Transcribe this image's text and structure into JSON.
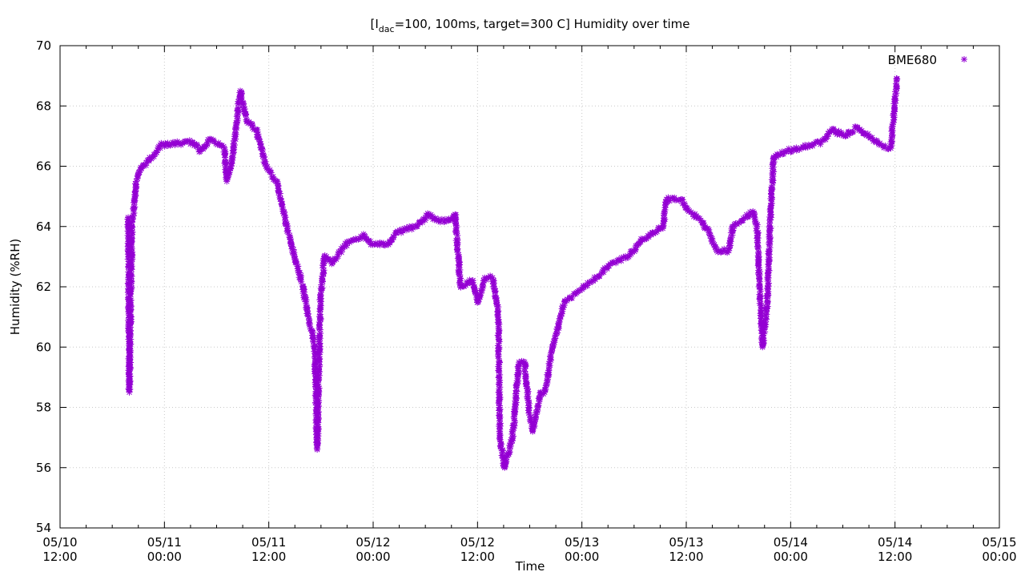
{
  "chart_data": {
    "type": "scatter",
    "title": {
      "prefix": "[I",
      "subscript": "dac",
      "suffix": "=100, 100ms, target=300 C] Humidity over time"
    },
    "xlabel": "Time",
    "ylabel": "Humidity (%RH)",
    "xlim": [
      "05/10 12:00",
      "05/15 00:00"
    ],
    "ylim": [
      54,
      70
    ],
    "x_ticks": [
      {
        "date": "05/10",
        "time": "12:00"
      },
      {
        "date": "05/11",
        "time": "00:00"
      },
      {
        "date": "05/11",
        "time": "12:00"
      },
      {
        "date": "05/12",
        "time": "00:00"
      },
      {
        "date": "05/12",
        "time": "12:00"
      },
      {
        "date": "05/13",
        "time": "00:00"
      },
      {
        "date": "05/13",
        "time": "12:00"
      },
      {
        "date": "05/14",
        "time": "00:00"
      },
      {
        "date": "05/14",
        "time": "12:00"
      },
      {
        "date": "05/15",
        "time": "00:00"
      }
    ],
    "y_ticks": [
      "54",
      "56",
      "58",
      "60",
      "62",
      "64",
      "66",
      "68",
      "70"
    ],
    "grid": true,
    "legend_position": "top-right",
    "series": [
      {
        "name": "BME680",
        "color": "#9400D3",
        "marker": "asterisk",
        "points": [
          [
            "05/10 19:50",
            64.3
          ],
          [
            "05/10 19:53",
            63.0
          ],
          [
            "05/10 19:55",
            61.2
          ],
          [
            "05/10 19:56",
            60.5
          ],
          [
            "05/10 19:57",
            59.5
          ],
          [
            "05/10 19:58",
            58.5
          ],
          [
            "05/10 20:17",
            64.0
          ],
          [
            "05/10 20:45",
            65.5
          ],
          [
            "05/10 21:29",
            66.0
          ],
          [
            "05/10 22:35",
            66.3
          ],
          [
            "05/10 23:31",
            66.7
          ],
          [
            "05/11 03:12",
            66.8
          ],
          [
            "05/11 04:07",
            66.5
          ],
          [
            "05/11 05:13",
            66.9
          ],
          [
            "05/11 06:53",
            66.6
          ],
          [
            "05/11 07:10",
            65.5
          ],
          [
            "05/11 07:48",
            66.2
          ],
          [
            "05/11 08:43",
            68.5
          ],
          [
            "05/11 09:28",
            67.5
          ],
          [
            "05/11 10:34",
            67.2
          ],
          [
            "05/11 11:40",
            66.0
          ],
          [
            "05/11 12:52",
            65.5
          ],
          [
            "05/11 14:04",
            64.0
          ],
          [
            "05/11 14:59",
            63.0
          ],
          [
            "05/11 15:55",
            62.0
          ],
          [
            "05/11 16:33",
            61.0
          ],
          [
            "05/11 17:17",
            60.0
          ],
          [
            "05/11 17:34",
            56.6
          ],
          [
            "05/11 17:56",
            61.5
          ],
          [
            "05/11 18:23",
            63.0
          ],
          [
            "05/11 19:19",
            62.8
          ],
          [
            "05/11 21:10",
            63.5
          ],
          [
            "05/11 23:00",
            63.7
          ],
          [
            "05/11 23:55",
            63.4
          ],
          [
            "05/12 01:46",
            63.4
          ],
          [
            "05/12 02:41",
            63.8
          ],
          [
            "05/12 04:59",
            64.0
          ],
          [
            "05/12 06:22",
            64.4
          ],
          [
            "05/12 07:17",
            64.2
          ],
          [
            "05/12 08:40",
            64.2
          ],
          [
            "05/12 09:25",
            64.4
          ],
          [
            "05/12 10:03",
            62.0
          ],
          [
            "05/12 11:26",
            62.2
          ],
          [
            "05/12 12:05",
            61.5
          ],
          [
            "05/12 12:49",
            62.3
          ],
          [
            "05/12 13:44",
            62.3
          ],
          [
            "05/12 14:23",
            61.2
          ],
          [
            "05/12 14:34",
            57.0
          ],
          [
            "05/12 15:07",
            56.0
          ],
          [
            "05/12 16:02",
            57.0
          ],
          [
            "05/12 16:46",
            59.5
          ],
          [
            "05/12 17:25",
            59.5
          ],
          [
            "05/12 17:53",
            58.0
          ],
          [
            "05/12 18:20",
            57.2
          ],
          [
            "05/12 19:16",
            58.5
          ],
          [
            "05/12 19:43",
            58.5
          ],
          [
            "05/12 20:38",
            60.0
          ],
          [
            "05/12 22:01",
            61.5
          ],
          [
            "05/12 23:24",
            61.8
          ],
          [
            "05/13 01:15",
            62.2
          ],
          [
            "05/13 03:33",
            62.8
          ],
          [
            "05/13 05:23",
            63.0
          ],
          [
            "05/13 06:46",
            63.5
          ],
          [
            "05/13 08:09",
            63.8
          ],
          [
            "05/13 09:21",
            64.0
          ],
          [
            "05/13 09:43",
            64.9
          ],
          [
            "05/13 11:23",
            64.9
          ],
          [
            "05/13 12:18",
            64.5
          ],
          [
            "05/13 13:41",
            64.2
          ],
          [
            "05/13 14:36",
            63.8
          ],
          [
            "05/13 15:31",
            63.2
          ],
          [
            "05/13 16:54",
            63.2
          ],
          [
            "05/13 17:22",
            64.0
          ],
          [
            "05/13 18:45",
            64.3
          ],
          [
            "05/13 19:40",
            64.5
          ],
          [
            "05/13 20:08",
            64.0
          ],
          [
            "05/13 20:46",
            60.0
          ],
          [
            "05/13 21:19",
            61.5
          ],
          [
            "05/13 21:41",
            64.5
          ],
          [
            "05/13 22:04",
            66.3
          ],
          [
            "05/13 23:21",
            66.5
          ],
          [
            "05/14 01:11",
            66.6
          ],
          [
            "05/14 03:30",
            66.8
          ],
          [
            "05/14 04:53",
            67.2
          ],
          [
            "05/14 06:16",
            67.0
          ],
          [
            "05/14 07:38",
            67.3
          ],
          [
            "05/14 09:01",
            67.0
          ],
          [
            "05/14 10:24",
            66.7
          ],
          [
            "05/14 11:31",
            66.6
          ],
          [
            "05/14 12:14",
            68.9
          ]
        ]
      }
    ]
  }
}
